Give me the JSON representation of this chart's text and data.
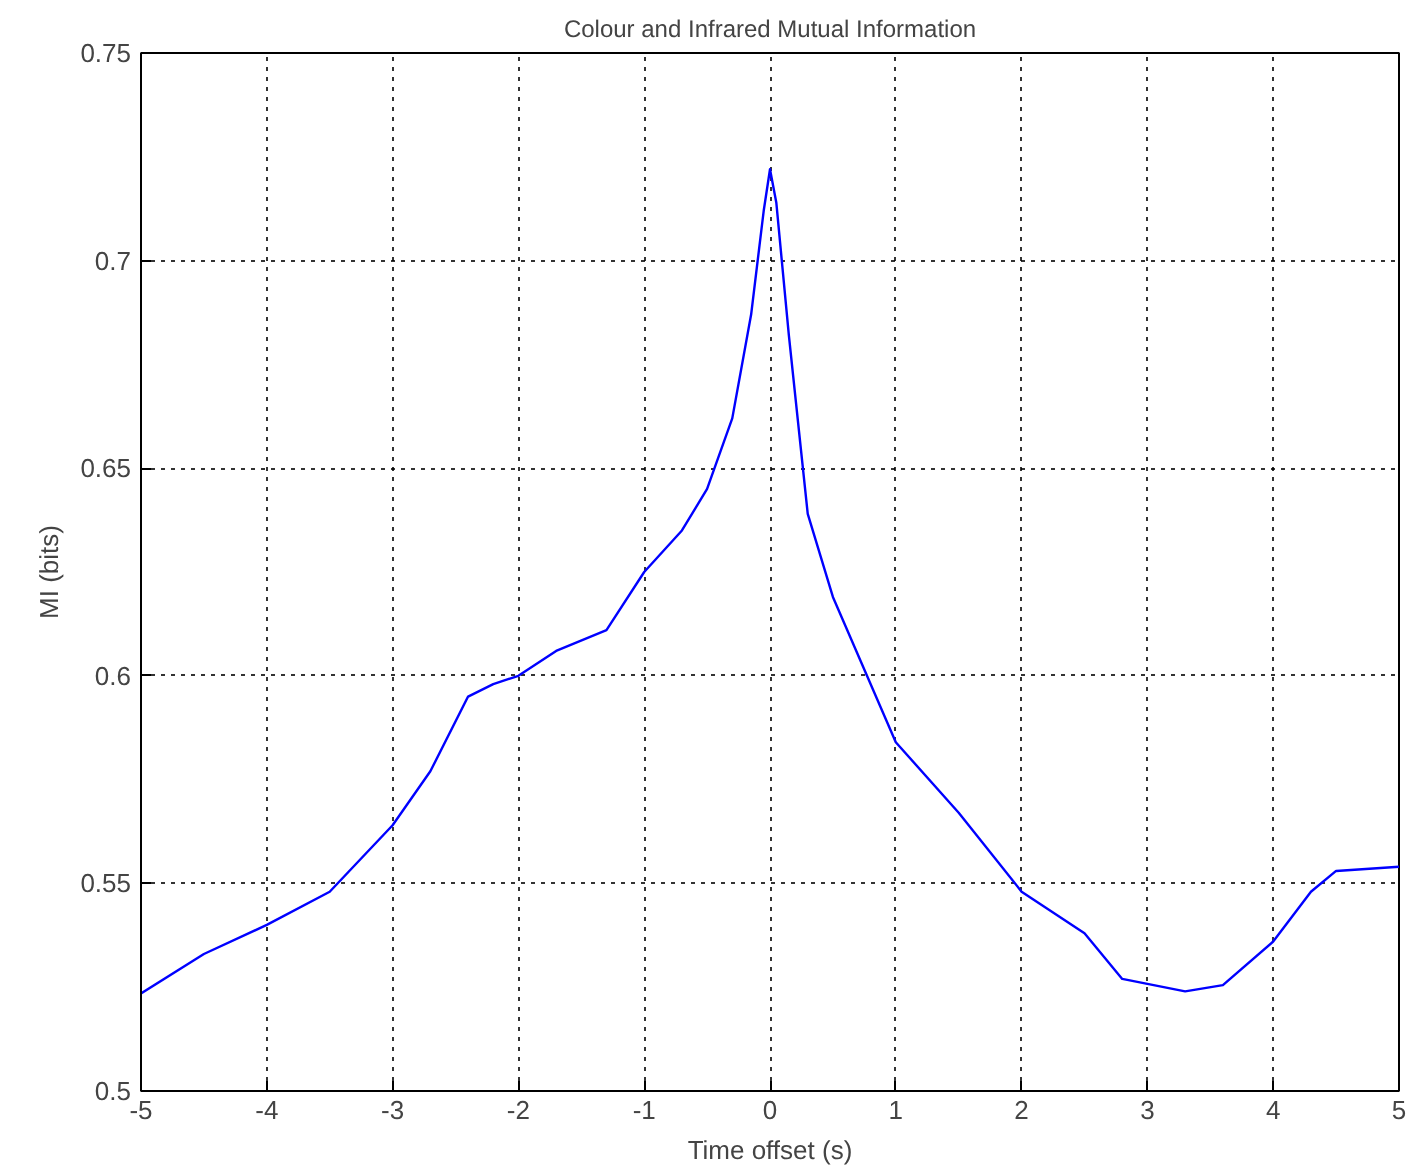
{
  "chart_data": {
    "type": "line",
    "title": "Colour and Infrared Mutual Information",
    "xlabel": "Time offset (s)",
    "ylabel": "MI (bits)",
    "x": [
      -5,
      -4.5,
      -4,
      -3.5,
      -3,
      -2.7,
      -2.4,
      -2.2,
      -2,
      -1.7,
      -1.3,
      -1,
      -0.7,
      -0.5,
      -0.3,
      -0.15,
      -0.05,
      0,
      0.05,
      0.15,
      0.3,
      0.5,
      1,
      1.5,
      2,
      2.5,
      2.8,
      3.3,
      3.6,
      4,
      4.3,
      4.5,
      5
    ],
    "series": [
      {
        "color": "#0000ff",
        "values": [
          0.5235,
          0.533,
          0.54,
          0.548,
          0.564,
          0.577,
          0.595,
          0.598,
          0.6,
          0.606,
          0.611,
          0.625,
          0.635,
          0.645,
          0.662,
          0.687,
          0.712,
          0.722,
          0.714,
          0.682,
          0.639,
          0.619,
          0.584,
          0.567,
          0.548,
          0.538,
          0.527,
          0.524,
          0.5255,
          0.536,
          0.548,
          0.553,
          0.554
        ]
      }
    ],
    "xlim": [
      -5,
      5
    ],
    "ylim": [
      0.5,
      0.75
    ],
    "xticks": [
      -5,
      -4,
      -3,
      -2,
      -1,
      0,
      1,
      2,
      3,
      4,
      5
    ],
    "yticks": [
      {
        "value": 0.5,
        "label": "0.5"
      },
      {
        "value": 0.55,
        "label": "0.55"
      },
      {
        "value": 0.6,
        "label": "0.6"
      },
      {
        "value": 0.65,
        "label": "0.65"
      },
      {
        "value": 0.7,
        "label": "0.7"
      },
      {
        "value": 0.75,
        "label": "0.75"
      }
    ],
    "grid": true,
    "line_style": "solid"
  }
}
